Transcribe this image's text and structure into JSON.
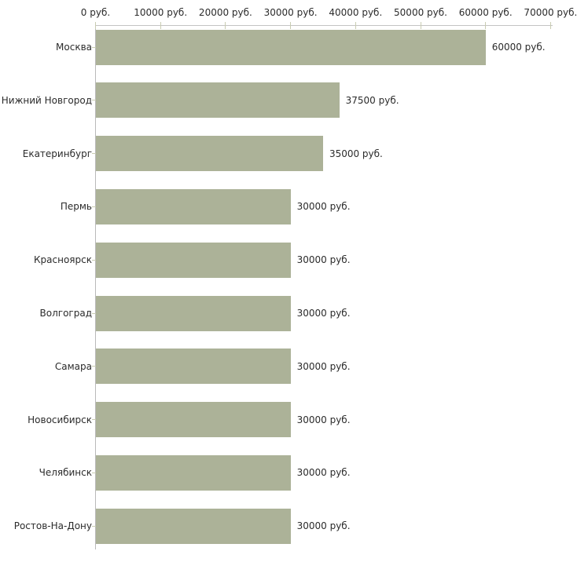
{
  "chart_data": {
    "type": "bar",
    "orientation": "horizontal",
    "title": "",
    "categories": [
      "Москва",
      "Нижний Новгород",
      "Екатеринбург",
      "Пермь",
      "Красноярск",
      "Волгоград",
      "Самара",
      "Новосибирск",
      "Челябинск",
      "Ростов-На-Дону"
    ],
    "values": [
      60000,
      37500,
      35000,
      30000,
      30000,
      30000,
      30000,
      30000,
      30000,
      30000
    ],
    "value_labels": [
      "60000 руб.",
      "37500 руб.",
      "35000 руб.",
      "30000 руб.",
      "30000 руб.",
      "30000 руб.",
      "30000 руб.",
      "30000 руб.",
      "30000 руб.",
      "30000 руб."
    ],
    "x_tick_values": [
      0,
      10000,
      20000,
      30000,
      40000,
      50000,
      60000,
      70000
    ],
    "x_tick_labels": [
      "0 руб.",
      "10000 руб.",
      "20000 руб.",
      "30000 руб.",
      "40000 руб.",
      "50000 руб.",
      "60000 руб.",
      "70000 руб."
    ],
    "xlim": [
      0,
      70000
    ],
    "unit": "руб.",
    "grid": "off",
    "legend": "none",
    "colors": {
      "bar": "#acb298",
      "axis_x": "#c3c3c3",
      "axis_y": "#b9b9b9",
      "tick": "#c9ccb2",
      "text": "#2b2b2b",
      "background": "#ffffff"
    }
  }
}
